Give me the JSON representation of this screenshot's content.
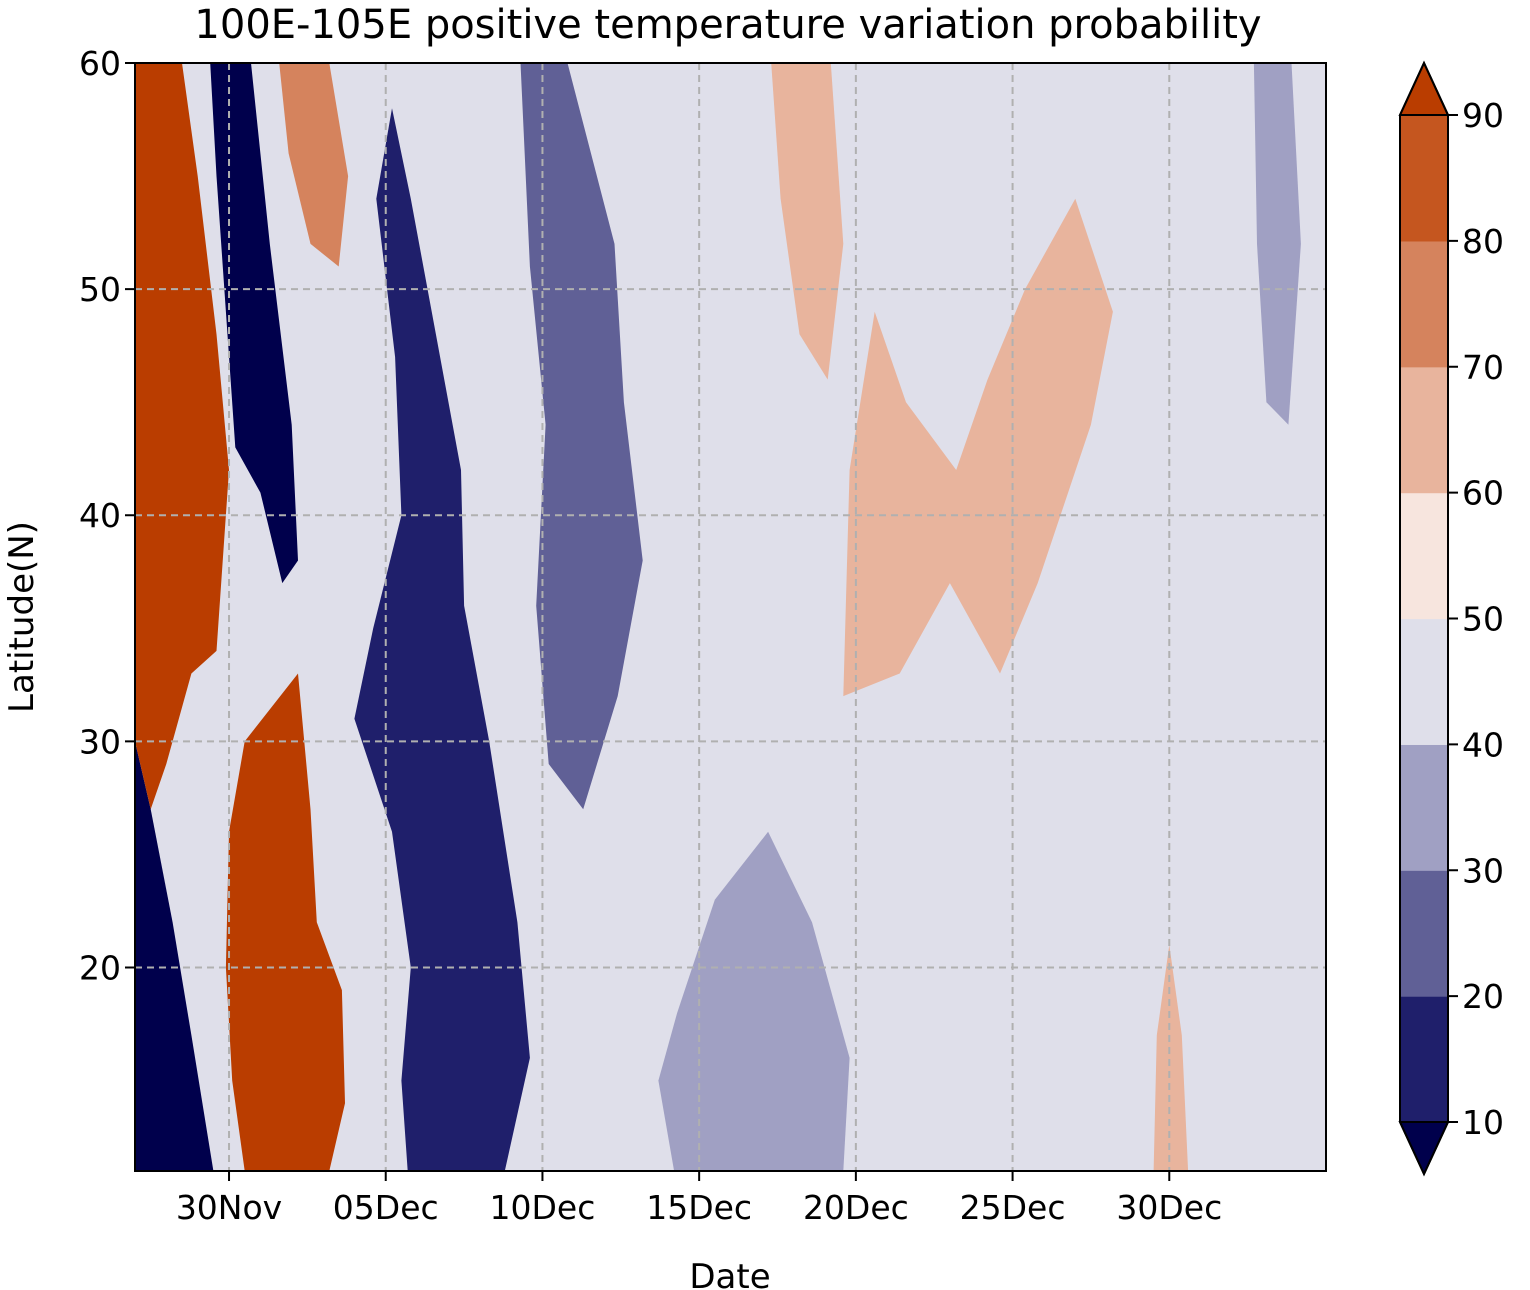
{
  "chart_data": {
    "type": "heatmap",
    "title": "100E-105E positive temperature variation probability",
    "xlabel": "Date",
    "ylabel": "Latitude(N)",
    "x_start": "2024-11-27",
    "x_end": "2025-01-04",
    "xlim": [
      "2024-11-27",
      "2025-01-04"
    ],
    "ylim": [
      11,
      60
    ],
    "x_ticks": [
      "2024-11-30",
      "2024-12-05",
      "2024-12-10",
      "2024-12-15",
      "2024-12-20",
      "2024-12-25",
      "2024-12-30"
    ],
    "x_tick_labels": [
      "30Nov",
      "05Dec",
      "10Dec",
      "15Dec",
      "20Dec",
      "25Dec",
      "30Dec"
    ],
    "y_ticks": [
      20,
      30,
      40,
      50,
      60
    ],
    "y_tick_labels": [
      "20",
      "30",
      "40",
      "50",
      "60"
    ],
    "grid": true,
    "colorbar": {
      "levels": [
        10,
        20,
        30,
        40,
        50,
        60,
        70,
        80,
        90
      ],
      "tick_labels": [
        "10",
        "20",
        "30",
        "40",
        "50",
        "60",
        "70",
        "80",
        "90"
      ],
      "extend": "both",
      "colors": [
        "#00004c",
        "#1f1f6b",
        "#606096",
        "#a0a0c3",
        "#dfdfea",
        "#f7e5de",
        "#e8b49d",
        "#d5835d",
        "#c5561f",
        "#ba3d00"
      ]
    },
    "bands": [
      {
        "name": "band-cold-west",
        "value": 5,
        "poly": [
          [
            "2024-11-27",
            11
          ],
          [
            "2024-11-29.5",
            11
          ],
          [
            "2024-11-28.8",
            17
          ],
          [
            "2024-11-28.2",
            22
          ],
          [
            "2024-11-27.5",
            27
          ],
          [
            "2024-11-27",
            30
          ]
        ]
      },
      {
        "name": "band-warm-west",
        "value": 95,
        "poly": [
          [
            "2024-11-27",
            30
          ],
          [
            "2024-11-27.5",
            27
          ],
          [
            "2024-11-28",
            29
          ],
          [
            "2024-11-28.8",
            33
          ],
          [
            "2024-11-29.6",
            34
          ],
          [
            "2024-11-30",
            42
          ],
          [
            "2024-11-29.6",
            48
          ],
          [
            "2024-11-29",
            55
          ],
          [
            "2024-11-28.5",
            60
          ],
          [
            "2024-11-27",
            60
          ]
        ]
      },
      {
        "name": "band-cold-ridge",
        "value": 5,
        "poly": [
          [
            "2024-11-29.4",
            60
          ],
          [
            "2024-11-30.7",
            60
          ],
          [
            "2024-12-01.3",
            52
          ],
          [
            "2024-12-02",
            44
          ],
          [
            "2024-12-02.2",
            38
          ],
          [
            "2024-12-01.7",
            37
          ],
          [
            "2024-12-01",
            41
          ],
          [
            "2024-11-30.2",
            43
          ],
          [
            "2024-11-29.9",
            49
          ],
          [
            "2024-11-29.6",
            55
          ]
        ]
      },
      {
        "name": "band-warm-ridge",
        "value": 95,
        "poly": [
          [
            "2024-11-30.5",
            11
          ],
          [
            "2024-12-03.2",
            11
          ],
          [
            "2024-12-03.7",
            14
          ],
          [
            "2024-12-03.6",
            19
          ],
          [
            "2024-12-02.8",
            22
          ],
          [
            "2024-12-02.6",
            27
          ],
          [
            "2024-12-02.2",
            33
          ],
          [
            "2024-11-30.5",
            30
          ],
          [
            "2024-11-30",
            26
          ],
          [
            "2024-11-29.9",
            20
          ],
          [
            "2024-11-30.1",
            15
          ]
        ]
      },
      {
        "name": "band-warm-upper",
        "value": 75,
        "poly": [
          [
            "2024-12-01.6",
            60
          ],
          [
            "2024-12-03.2",
            60
          ],
          [
            "2024-12-03.8",
            55
          ],
          [
            "2024-12-03.5",
            51
          ],
          [
            "2024-12-02.6",
            52
          ],
          [
            "2024-12-01.9",
            56
          ]
        ]
      },
      {
        "name": "band-cold-trough-a",
        "value": 15,
        "poly": [
          [
            "2024-12-05.7",
            11
          ],
          [
            "2024-12-08.8",
            11
          ],
          [
            "2024-12-09.6",
            16
          ],
          [
            "2024-12-09.2",
            22
          ],
          [
            "2024-12-08.3",
            30
          ],
          [
            "2024-12-07.5",
            36
          ],
          [
            "2024-12-07.4",
            42
          ],
          [
            "2024-12-06.6",
            48
          ],
          [
            "2024-12-05.8",
            54
          ],
          [
            "2024-12-05.2",
            58
          ],
          [
            "2024-12-04.7",
            54
          ],
          [
            "2024-12-05.3",
            47
          ],
          [
            "2024-12-05.5",
            40
          ],
          [
            "2024-12-04.6",
            35
          ],
          [
            "2024-12-04",
            31
          ],
          [
            "2024-12-05.2",
            26
          ],
          [
            "2024-12-05.8",
            20
          ],
          [
            "2024-12-05.5",
            15
          ]
        ]
      },
      {
        "name": "band-cold-trough-b",
        "value": 25,
        "poly": [
          [
            "2024-12-09.3",
            60
          ],
          [
            "2024-12-10.8",
            60
          ],
          [
            "2024-12-12.3",
            52
          ],
          [
            "2024-12-12.6",
            45
          ],
          [
            "2024-12-13.2",
            38
          ],
          [
            "2024-12-12.4",
            32
          ],
          [
            "2024-12-11.3",
            27
          ],
          [
            "2024-12-10.2",
            29
          ],
          [
            "2024-12-09.8",
            36
          ],
          [
            "2024-12-10.1",
            44
          ],
          [
            "2024-12-09.6",
            51
          ]
        ]
      },
      {
        "name": "band-cold-south-c",
        "value": 35,
        "poly": [
          [
            "2024-12-14.2",
            11
          ],
          [
            "2024-12-19.6",
            11
          ],
          [
            "2024-12-19.8",
            16
          ],
          [
            "2024-12-18.6",
            22
          ],
          [
            "2024-12-17.2",
            26
          ],
          [
            "2024-12-15.5",
            23
          ],
          [
            "2024-12-14.3",
            18
          ],
          [
            "2024-12-13.7",
            15
          ]
        ]
      },
      {
        "name": "band-warm-mid",
        "value": 65,
        "poly": [
          [
            "2024-12-19.6",
            32
          ],
          [
            "2024-12-21.4",
            33
          ],
          [
            "2024-12-23",
            37
          ],
          [
            "2024-12-24.6",
            33
          ],
          [
            "2024-12-25.8",
            37
          ],
          [
            "2024-12-27.5",
            44
          ],
          [
            "2024-12-28.2",
            49
          ],
          [
            "2024-12-27",
            54
          ],
          [
            "2024-12-25.4",
            50
          ],
          [
            "2024-12-24.2",
            46
          ],
          [
            "2024-12-23.2",
            42
          ],
          [
            "2024-12-21.6",
            45
          ],
          [
            "2024-12-20.6",
            49
          ],
          [
            "2024-12-19.8",
            42
          ]
        ]
      },
      {
        "name": "band-warm-north",
        "value": 65,
        "poly": [
          [
            "2024-12-17.3",
            60
          ],
          [
            "2024-12-19.2",
            60
          ],
          [
            "2024-12-19.6",
            52
          ],
          [
            "2024-12-19.1",
            46
          ],
          [
            "2024-12-18.2",
            48
          ],
          [
            "2024-12-17.6",
            54
          ]
        ]
      },
      {
        "name": "band-cold-east",
        "value": 35,
        "poly": [
          [
            "2025-01-01.7",
            60
          ],
          [
            "2025-01-02.9",
            60
          ],
          [
            "2025-01-03.2",
            52
          ],
          [
            "2025-01-02.8",
            44
          ],
          [
            "2025-01-02.1",
            45
          ],
          [
            "2025-01-01.8",
            52
          ]
        ]
      },
      {
        "name": "band-warm-east-south",
        "value": 65,
        "poly": [
          [
            "2024-12-29.5",
            11
          ],
          [
            "2024-12-30.6",
            11
          ],
          [
            "2024-12-30.4",
            17
          ],
          [
            "2024-12-30",
            21
          ],
          [
            "2024-12-29.6",
            17
          ]
        ]
      }
    ]
  }
}
